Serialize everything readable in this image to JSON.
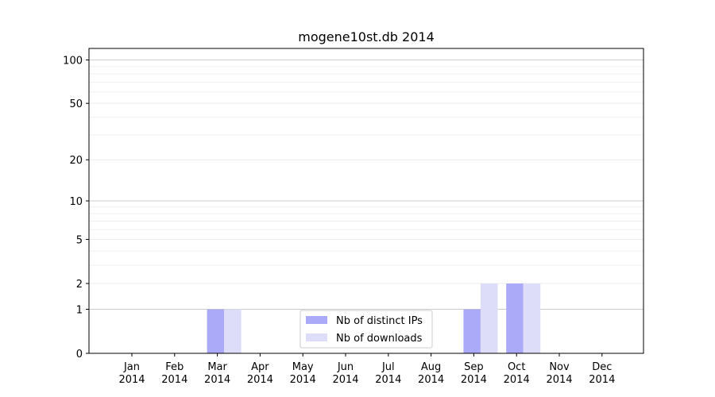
{
  "chart_data": {
    "type": "bar",
    "title": "mogene10st.db 2014",
    "xlabel": "",
    "ylabel": "",
    "y_scale": "log1p",
    "ylim": [
      0,
      120
    ],
    "y_ticks": [
      0,
      1,
      2,
      5,
      10,
      20,
      50,
      100
    ],
    "y_tick_labels": [
      "0",
      "1",
      "2",
      "5",
      "10",
      "20",
      "50",
      "100"
    ],
    "grid": "horizontal",
    "legend_position": "lower-center",
    "categories": [
      {
        "month": "Jan",
        "year": "2014"
      },
      {
        "month": "Feb",
        "year": "2014"
      },
      {
        "month": "Mar",
        "year": "2014"
      },
      {
        "month": "Apr",
        "year": "2014"
      },
      {
        "month": "May",
        "year": "2014"
      },
      {
        "month": "Jun",
        "year": "2014"
      },
      {
        "month": "Jul",
        "year": "2014"
      },
      {
        "month": "Aug",
        "year": "2014"
      },
      {
        "month": "Sep",
        "year": "2014"
      },
      {
        "month": "Oct",
        "year": "2014"
      },
      {
        "month": "Nov",
        "year": "2014"
      },
      {
        "month": "Dec",
        "year": "2014"
      }
    ],
    "series": [
      {
        "name": "Nb of distinct IPs",
        "color": "#aaaaf8",
        "values": [
          0,
          0,
          1,
          0,
          0,
          0,
          0,
          0,
          1,
          2,
          0,
          0
        ]
      },
      {
        "name": "Nb of downloads",
        "color": "#ddddfa",
        "values": [
          0,
          0,
          1,
          0,
          0,
          0,
          0,
          0,
          2,
          2,
          0,
          0
        ]
      }
    ]
  }
}
